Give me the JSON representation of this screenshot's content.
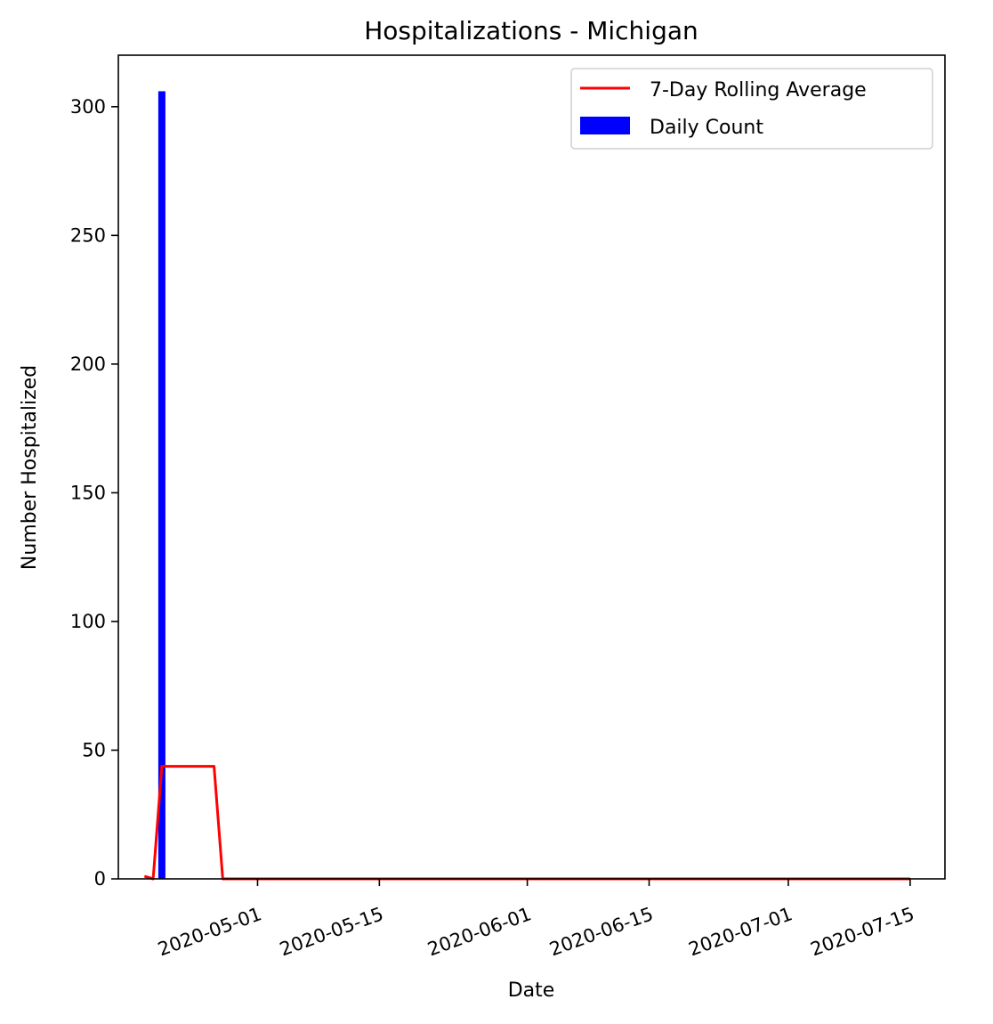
{
  "chart_data": {
    "type": "bar+line",
    "title": "Hospitalizations - Michigan",
    "xlabel": "Date",
    "ylabel": "Number Hospitalized",
    "xlim": [
      "2020-04-15",
      "2020-07-19"
    ],
    "ylim": [
      0,
      320
    ],
    "x_ticks": [
      "2020-05-01",
      "2020-05-15",
      "2020-06-01",
      "2020-06-15",
      "2020-07-01",
      "2020-07-15"
    ],
    "y_ticks": [
      0,
      50,
      100,
      150,
      200,
      250,
      300
    ],
    "grid": false,
    "legend": {
      "placement": "top-right",
      "entries": [
        "7-Day Rolling Average",
        "Daily Count"
      ]
    },
    "series": [
      {
        "name": "Daily Count",
        "type": "bar",
        "color": "#0000ff",
        "points": [
          {
            "x": "2020-04-20",
            "y": 306
          }
        ]
      },
      {
        "name": "7-Day Rolling Average",
        "type": "line",
        "color": "#ff0000",
        "points": [
          {
            "x": "2020-04-18",
            "y": 1
          },
          {
            "x": "2020-04-19",
            "y": 0
          },
          {
            "x": "2020-04-20",
            "y": 43.7
          },
          {
            "x": "2020-04-21",
            "y": 43.7
          },
          {
            "x": "2020-04-22",
            "y": 43.7
          },
          {
            "x": "2020-04-23",
            "y": 43.7
          },
          {
            "x": "2020-04-24",
            "y": 43.7
          },
          {
            "x": "2020-04-25",
            "y": 43.7
          },
          {
            "x": "2020-04-26",
            "y": 43.7
          },
          {
            "x": "2020-04-27",
            "y": 0
          },
          {
            "x": "2020-05-15",
            "y": 0
          },
          {
            "x": "2020-06-01",
            "y": 0
          },
          {
            "x": "2020-06-15",
            "y": 0
          },
          {
            "x": "2020-07-01",
            "y": 0
          },
          {
            "x": "2020-07-15",
            "y": 0
          }
        ]
      }
    ]
  }
}
